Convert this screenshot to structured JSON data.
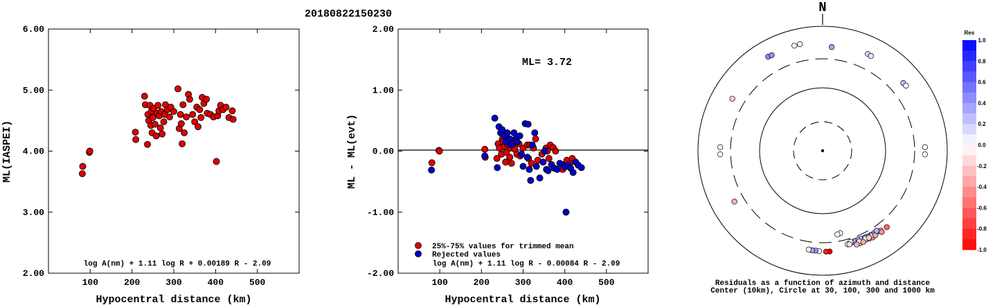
{
  "title": "20180822150230",
  "chart_data": [
    {
      "type": "scatter",
      "name": "left",
      "ylabel": "ML(IASPEI)",
      "xlabel": "Hypocentral distance (km)",
      "xlim": [
        0,
        600
      ],
      "ylim": [
        2.0,
        6.0
      ],
      "xticks": [
        100,
        200,
        300,
        400,
        500
      ],
      "yticks": [
        "2.00",
        "3.00",
        "4.00",
        "5.00",
        "6.00"
      ],
      "formula": "log A(nm) + 1.11 log R + 0.00189 R - 2.09",
      "points": [
        [
          81,
          3.63
        ],
        [
          82,
          3.75
        ],
        [
          98,
          3.98
        ],
        [
          99,
          4.0
        ],
        [
          208,
          4.31
        ],
        [
          209,
          4.19
        ],
        [
          230,
          4.9
        ],
        [
          232,
          4.76
        ],
        [
          237,
          4.11
        ],
        [
          238,
          4.6
        ],
        [
          240,
          4.5
        ],
        [
          243,
          4.75
        ],
        [
          245,
          4.42
        ],
        [
          246,
          4.65
        ],
        [
          248,
          4.3
        ],
        [
          250,
          4.55
        ],
        [
          252,
          4.7
        ],
        [
          255,
          4.44
        ],
        [
          258,
          4.25
        ],
        [
          260,
          4.62
        ],
        [
          262,
          4.75
        ],
        [
          265,
          4.58
        ],
        [
          268,
          4.38
        ],
        [
          270,
          4.65
        ],
        [
          272,
          4.28
        ],
        [
          276,
          4.48
        ],
        [
          278,
          4.6
        ],
        [
          280,
          4.76
        ],
        [
          285,
          4.68
        ],
        [
          290,
          4.56
        ],
        [
          293,
          4.72
        ],
        [
          300,
          4.65
        ],
        [
          310,
          5.02
        ],
        [
          313,
          4.37
        ],
        [
          316,
          4.6
        ],
        [
          318,
          4.45
        ],
        [
          320,
          4.12
        ],
        [
          322,
          4.76
        ],
        [
          325,
          4.3
        ],
        [
          330,
          4.56
        ],
        [
          335,
          4.93
        ],
        [
          338,
          4.85
        ],
        [
          345,
          4.6
        ],
        [
          350,
          4.48
        ],
        [
          355,
          4.72
        ],
        [
          358,
          4.4
        ],
        [
          362,
          4.68
        ],
        [
          365,
          4.55
        ],
        [
          368,
          4.88
        ],
        [
          372,
          4.78
        ],
        [
          378,
          4.85
        ],
        [
          380,
          4.62
        ],
        [
          388,
          4.6
        ],
        [
          395,
          4.56
        ],
        [
          402,
          3.83
        ],
        [
          405,
          4.58
        ],
        [
          408,
          4.66
        ],
        [
          412,
          4.75
        ],
        [
          418,
          4.68
        ],
        [
          425,
          4.72
        ],
        [
          432,
          4.55
        ],
        [
          440,
          4.66
        ],
        [
          442,
          4.52
        ]
      ]
    },
    {
      "type": "scatter",
      "name": "middle",
      "ylabel": "ML - ML(evt)",
      "xlabel": "Hypocentral distance (km)",
      "xlim": [
        0,
        600
      ],
      "ylim": [
        -2.0,
        2.0
      ],
      "xticks": [
        100,
        200,
        300,
        400,
        500
      ],
      "yticks": [
        "-2.00",
        "-1.00",
        "0.00",
        "1.00",
        "2.00"
      ],
      "ml_label": "ML= 3.72",
      "legend": [
        "25%-75% values for trimmed mean",
        "Rejected values"
      ],
      "formula": "log A(nm) + 1.11 log R - 0.00084 R - 2.09",
      "series": [
        {
          "name": "25%-75% values for trimmed mean",
          "color": "#e00000",
          "points": [
            [
              81,
              -0.19
            ],
            [
              98,
              0.01
            ],
            [
              99,
              0.0
            ],
            [
              208,
              0.03
            ],
            [
              209,
              -0.1
            ],
            [
              237,
              -0.12
            ],
            [
              240,
              0.12
            ],
            [
              243,
              0.05
            ],
            [
              248,
              -0.05
            ],
            [
              250,
              0.2
            ],
            [
              252,
              0.15
            ],
            [
              255,
              0.08
            ],
            [
              258,
              -0.18
            ],
            [
              260,
              -0.02
            ],
            [
              262,
              0.12
            ],
            [
              265,
              0.15
            ],
            [
              268,
              -0.1
            ],
            [
              270,
              0.05
            ],
            [
              272,
              -0.2
            ],
            [
              276,
              0.12
            ],
            [
              280,
              0.03
            ],
            [
              285,
              -0.05
            ],
            [
              290,
              0.12
            ],
            [
              293,
              -0.08
            ],
            [
              300,
              0.05
            ],
            [
              310,
              0.1
            ],
            [
              313,
              -0.12
            ],
            [
              316,
              0.1
            ],
            [
              320,
              -0.2
            ],
            [
              325,
              0.05
            ],
            [
              330,
              0.2
            ],
            [
              335,
              -0.15
            ],
            [
              345,
              -0.05
            ],
            [
              355,
              0.05
            ],
            [
              358,
              0.0
            ],
            [
              362,
              -0.12
            ],
            [
              365,
              0.1
            ],
            [
              372,
              0.06
            ],
            [
              378,
              0.0
            ],
            [
              395,
              -0.3
            ],
            [
              405,
              -0.15
            ],
            [
              412,
              -0.2
            ],
            [
              418,
              -0.12
            ]
          ]
        },
        {
          "name": "Rejected values",
          "color": "#0000cc",
          "points": [
            [
              80,
              -0.31
            ],
            [
              208,
              -0.08
            ],
            [
              232,
              0.54
            ],
            [
              238,
              -0.27
            ],
            [
              242,
              0.4
            ],
            [
              246,
              0.3
            ],
            [
              250,
              0.35
            ],
            [
              255,
              0.25
            ],
            [
              258,
              0.15
            ],
            [
              262,
              0.3
            ],
            [
              268,
              0.2
            ],
            [
              272,
              0.1
            ],
            [
              278,
              0.3
            ],
            [
              282,
              0.2
            ],
            [
              286,
              0.15
            ],
            [
              292,
              0.25
            ],
            [
              296,
              -0.05
            ],
            [
              300,
              -0.25
            ],
            [
              305,
              0.45
            ],
            [
              310,
              -0.1
            ],
            [
              312,
              0.44
            ],
            [
              315,
              -0.3
            ],
            [
              318,
              -0.48
            ],
            [
              322,
              0.1
            ],
            [
              328,
              0.3
            ],
            [
              332,
              -0.25
            ],
            [
              340,
              -0.44
            ],
            [
              348,
              -0.18
            ],
            [
              352,
              0.0
            ],
            [
              356,
              -0.3
            ],
            [
              360,
              -0.32
            ],
            [
              368,
              -0.22
            ],
            [
              375,
              -0.28
            ],
            [
              382,
              -0.3
            ],
            [
              388,
              -0.2
            ],
            [
              395,
              -0.22
            ],
            [
              400,
              -0.26
            ],
            [
              403,
              -1.0
            ],
            [
              408,
              -0.23
            ],
            [
              414,
              -0.28
            ],
            [
              420,
              -0.35
            ],
            [
              426,
              -0.18
            ],
            [
              432,
              -0.23
            ],
            [
              440,
              -0.27
            ]
          ]
        }
      ]
    },
    {
      "type": "scatter",
      "name": "azimuth-distance",
      "north_label": "N",
      "caption_line1": "Residuals as a function of azimuth and distance",
      "caption_line2": "Center (10km), Circle at 30, 100, 300 and 1000 km",
      "colorbar_title": "Res",
      "colorbar_ticks": [
        "1.0",
        "0.8",
        "0.6",
        "0.4",
        "0.2",
        "0.0",
        "-0.2",
        "-0.4",
        "-0.6",
        "-0.8",
        "-1.0"
      ],
      "points": [
        {
          "az": 345,
          "dist": 560,
          "res": 0.0
        },
        {
          "az": 348,
          "dist": 562,
          "res": 0.0
        },
        {
          "az": 330,
          "dist": 555,
          "res": 0.45
        },
        {
          "az": 332,
          "dist": 548,
          "res": 0.42
        },
        {
          "az": 5,
          "dist": 470,
          "res": 0.35
        },
        {
          "az": 25,
          "dist": 520,
          "res": 0.18
        },
        {
          "az": 27,
          "dist": 512,
          "res": 0.1
        },
        {
          "az": 50,
          "dist": 490,
          "res": 0.25
        },
        {
          "az": 52,
          "dist": 500,
          "res": 0.05
        },
        {
          "az": 300,
          "dist": 470,
          "res": -0.2
        },
        {
          "az": 88,
          "dist": 440,
          "res": 0.0
        },
        {
          "az": 92,
          "dist": 440,
          "res": 0.0
        },
        {
          "az": 268,
          "dist": 440,
          "res": 0.0
        },
        {
          "az": 272,
          "dist": 440,
          "res": 0.0
        },
        {
          "az": 240,
          "dist": 430,
          "res": -0.3
        },
        {
          "az": 168,
          "dist": 225,
          "res": 0.0
        },
        {
          "az": 170,
          "dist": 230,
          "res": 0.0
        },
        {
          "az": 176,
          "dist": 418,
          "res": -1.0
        },
        {
          "az": 178,
          "dist": 418,
          "res": -0.9
        },
        {
          "az": 182,
          "dist": 410,
          "res": 0.0
        },
        {
          "az": 184,
          "dist": 405,
          "res": 0.4
        },
        {
          "az": 186,
          "dist": 405,
          "res": 0.35
        },
        {
          "az": 188,
          "dist": 400,
          "res": 0.0
        },
        {
          "az": 165,
          "dist": 360,
          "res": 0.0
        },
        {
          "az": 160,
          "dist": 380,
          "res": -0.3
        },
        {
          "az": 158,
          "dist": 400,
          "res": -0.3
        },
        {
          "az": 156,
          "dist": 390,
          "res": -0.25
        },
        {
          "az": 154,
          "dist": 385,
          "res": -0.2
        },
        {
          "az": 152,
          "dist": 395,
          "res": -0.3
        },
        {
          "az": 150,
          "dist": 405,
          "res": -0.4
        },
        {
          "az": 162,
          "dist": 350,
          "res": 0.35
        },
        {
          "az": 160,
          "dist": 345,
          "res": 0.4
        },
        {
          "az": 158,
          "dist": 345,
          "res": 0.3
        },
        {
          "az": 156,
          "dist": 350,
          "res": 0.25
        },
        {
          "az": 154,
          "dist": 355,
          "res": 0.3
        },
        {
          "az": 152,
          "dist": 360,
          "res": 0.45
        },
        {
          "az": 150,
          "dist": 360,
          "res": 0.4
        },
        {
          "az": 148,
          "dist": 365,
          "res": 0.35
        },
        {
          "az": 146,
          "dist": 370,
          "res": 0.3
        },
        {
          "az": 150,
          "dist": 375,
          "res": 0.2
        },
        {
          "az": 154,
          "dist": 370,
          "res": 0.0
        },
        {
          "az": 158,
          "dist": 370,
          "res": 0.1
        },
        {
          "az": 163,
          "dist": 340,
          "res": 0.0
        },
        {
          "az": 164,
          "dist": 365,
          "res": -0.1
        },
        {
          "az": 156,
          "dist": 400,
          "res": -0.35
        },
        {
          "az": 160,
          "dist": 400,
          "res": -0.3
        },
        {
          "az": 152,
          "dist": 380,
          "res": -0.2
        },
        {
          "az": 148,
          "dist": 395,
          "res": -0.35
        },
        {
          "az": 144,
          "dist": 385,
          "res": -0.4
        },
        {
          "az": 144,
          "dist": 410,
          "res": -0.45
        },
        {
          "az": 140,
          "dist": 400,
          "res": -0.6
        },
        {
          "az": 146,
          "dist": 355,
          "res": 0.3
        }
      ]
    }
  ]
}
